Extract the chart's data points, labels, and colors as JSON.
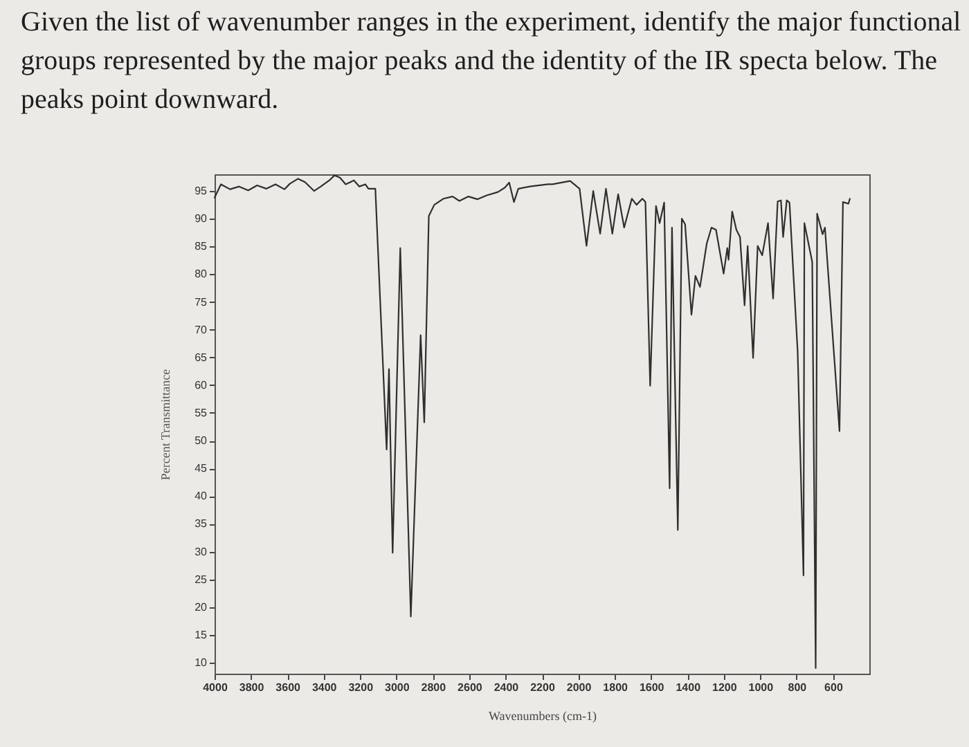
{
  "chart_data": {
    "type": "line",
    "title": "Given the list of wavenumber ranges in the experiment, identify the major functional groups represented by the major peaks and the identity of the IR specta below. The peaks point downward.",
    "xlabel": "Wavenumbers (cm-1)",
    "ylabel": "Percent Transmittance",
    "x": [
      4000,
      3965,
      3915,
      3865,
      3815,
      3766,
      3715,
      3665,
      3616,
      3586,
      3541,
      3503,
      3453,
      3416,
      3366,
      3341,
      3311,
      3279,
      3234,
      3204,
      3171,
      3154,
      3116,
      3054,
      3041,
      3021,
      2979,
      2921,
      2867,
      2847,
      2822,
      2792,
      2742,
      2691,
      2654,
      2604,
      2554,
      2504,
      2442,
      2404,
      2380,
      2354,
      2330,
      2267,
      2167,
      2142,
      2045,
      1993,
      1955,
      1918,
      1880,
      1848,
      1813,
      1781,
      1748,
      1706,
      1680,
      1648,
      1631,
      1605,
      1573,
      1553,
      1528,
      1498,
      1485,
      1453,
      1431,
      1413,
      1378,
      1356,
      1331,
      1294,
      1268,
      1243,
      1201,
      1181,
      1174,
      1154,
      1131,
      1111,
      1086,
      1069,
      1039,
      1014,
      989,
      957,
      929,
      904,
      886,
      874,
      854,
      839,
      794,
      762,
      757,
      714,
      695,
      687,
      657,
      644,
      564,
      545,
      515,
      507
    ],
    "values": [
      93.8,
      96.2,
      95.3,
      95.8,
      95.1,
      96,
      95.4,
      96.2,
      95.3,
      96.3,
      97.2,
      96.6,
      95,
      95.8,
      97,
      97.8,
      97.4,
      96.2,
      96.9,
      95.8,
      96.2,
      95.4,
      95.4,
      48.4,
      62.9,
      29.8,
      84.7,
      18.3,
      69,
      53.3,
      90.5,
      92.5,
      93.6,
      94,
      93.2,
      94,
      93.5,
      94.2,
      94.8,
      95.6,
      96.5,
      93,
      95.4,
      95.8,
      96.2,
      96.2,
      96.8,
      95.4,
      85.1,
      95,
      87.3,
      95.4,
      87.3,
      94.4,
      88.4,
      93.6,
      92.5,
      93.6,
      93,
      59.9,
      92.3,
      89.2,
      92.9,
      41.4,
      88.4,
      33.9,
      90,
      89,
      72.7,
      79.7,
      77.7,
      85.5,
      88.4,
      88,
      80.1,
      84.7,
      82.6,
      91.3,
      88,
      86.7,
      74.4,
      85.1,
      64.9,
      85.1,
      83.4,
      89.2,
      75.6,
      93.1,
      93.3,
      86.7,
      93.3,
      92.9,
      66,
      25.7,
      89.2,
      82.2,
      9,
      90.9,
      87.2,
      88.4,
      51.7,
      93,
      92.7,
      93.6
    ],
    "color": "#2f2f2f",
    "xlim": [
      4000,
      400
    ],
    "xticks": [
      4000,
      3800,
      3600,
      3400,
      3200,
      3000,
      2800,
      2600,
      2400,
      2200,
      2000,
      1800,
      1600,
      1400,
      1200,
      1000,
      800,
      600
    ],
    "ylim": [
      8,
      98
    ],
    "yticks": [
      10,
      15,
      20,
      25,
      30,
      35,
      40,
      45,
      50,
      55,
      60,
      65,
      70,
      75,
      80,
      85,
      90,
      95
    ]
  }
}
